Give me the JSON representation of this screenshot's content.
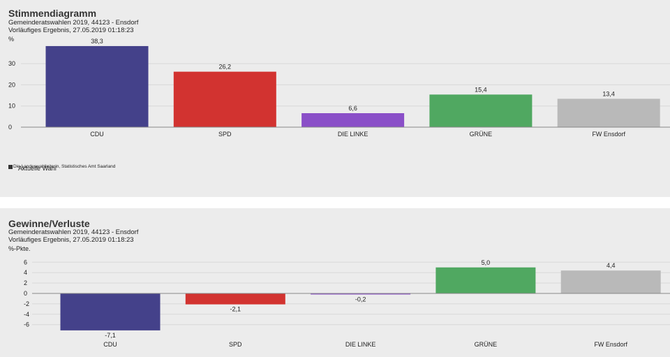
{
  "chart_data": [
    {
      "type": "bar",
      "title": "Stimmendiagramm",
      "subtitle": [
        "Gemeinderatswahlen 2019, 44123 - Ensdorf",
        "Vorläufiges Ergebnis, 27.05.2019 01:18:23"
      ],
      "ylabel": "%",
      "categories": [
        "CDU",
        "SPD",
        "DIE LINKE",
        "GRÜNE",
        "FW Ensdorf"
      ],
      "values": [
        38.3,
        26.2,
        6.6,
        15.4,
        13.4
      ],
      "value_labels": [
        "38,3",
        "26,2",
        "6,6",
        "15,4",
        "13,4"
      ],
      "colors": [
        "#44418a",
        "#d23330",
        "#8a4fc8",
        "#50a861",
        "#b9b9b9"
      ],
      "yticks": [
        "0",
        "10",
        "20",
        "30"
      ],
      "ylim": [
        0,
        40
      ],
      "legend": {
        "label": "Aktuelle Wahl",
        "source": "Die Landeswahlleiterin, Statistisches Amt Saarland",
        "placement": "bottom-left"
      }
    },
    {
      "type": "bar",
      "title": "Gewinne/Verluste",
      "subtitle": [
        "Gemeinderatswahlen 2019, 44123 - Ensdorf",
        "Vorläufiges Ergebnis, 27.05.2019 01:18:23"
      ],
      "ylabel": "%-Pkte.",
      "categories": [
        "CDU",
        "SPD",
        "DIE LINKE",
        "GRÜNE",
        "FW Ensdorf"
      ],
      "values": [
        -7.1,
        -2.1,
        -0.2,
        5.0,
        4.4
      ],
      "value_labels": [
        "-7,1",
        "-2,1",
        "-0,2",
        "5,0",
        "4,4"
      ],
      "colors": [
        "#44418a",
        "#d23330",
        "#8a4fc8",
        "#50a861",
        "#b9b9b9"
      ],
      "yticks": [
        "-6",
        "-4",
        "-2",
        "0",
        "2",
        "4",
        "6"
      ],
      "ylim": [
        -7.1,
        7
      ]
    }
  ]
}
